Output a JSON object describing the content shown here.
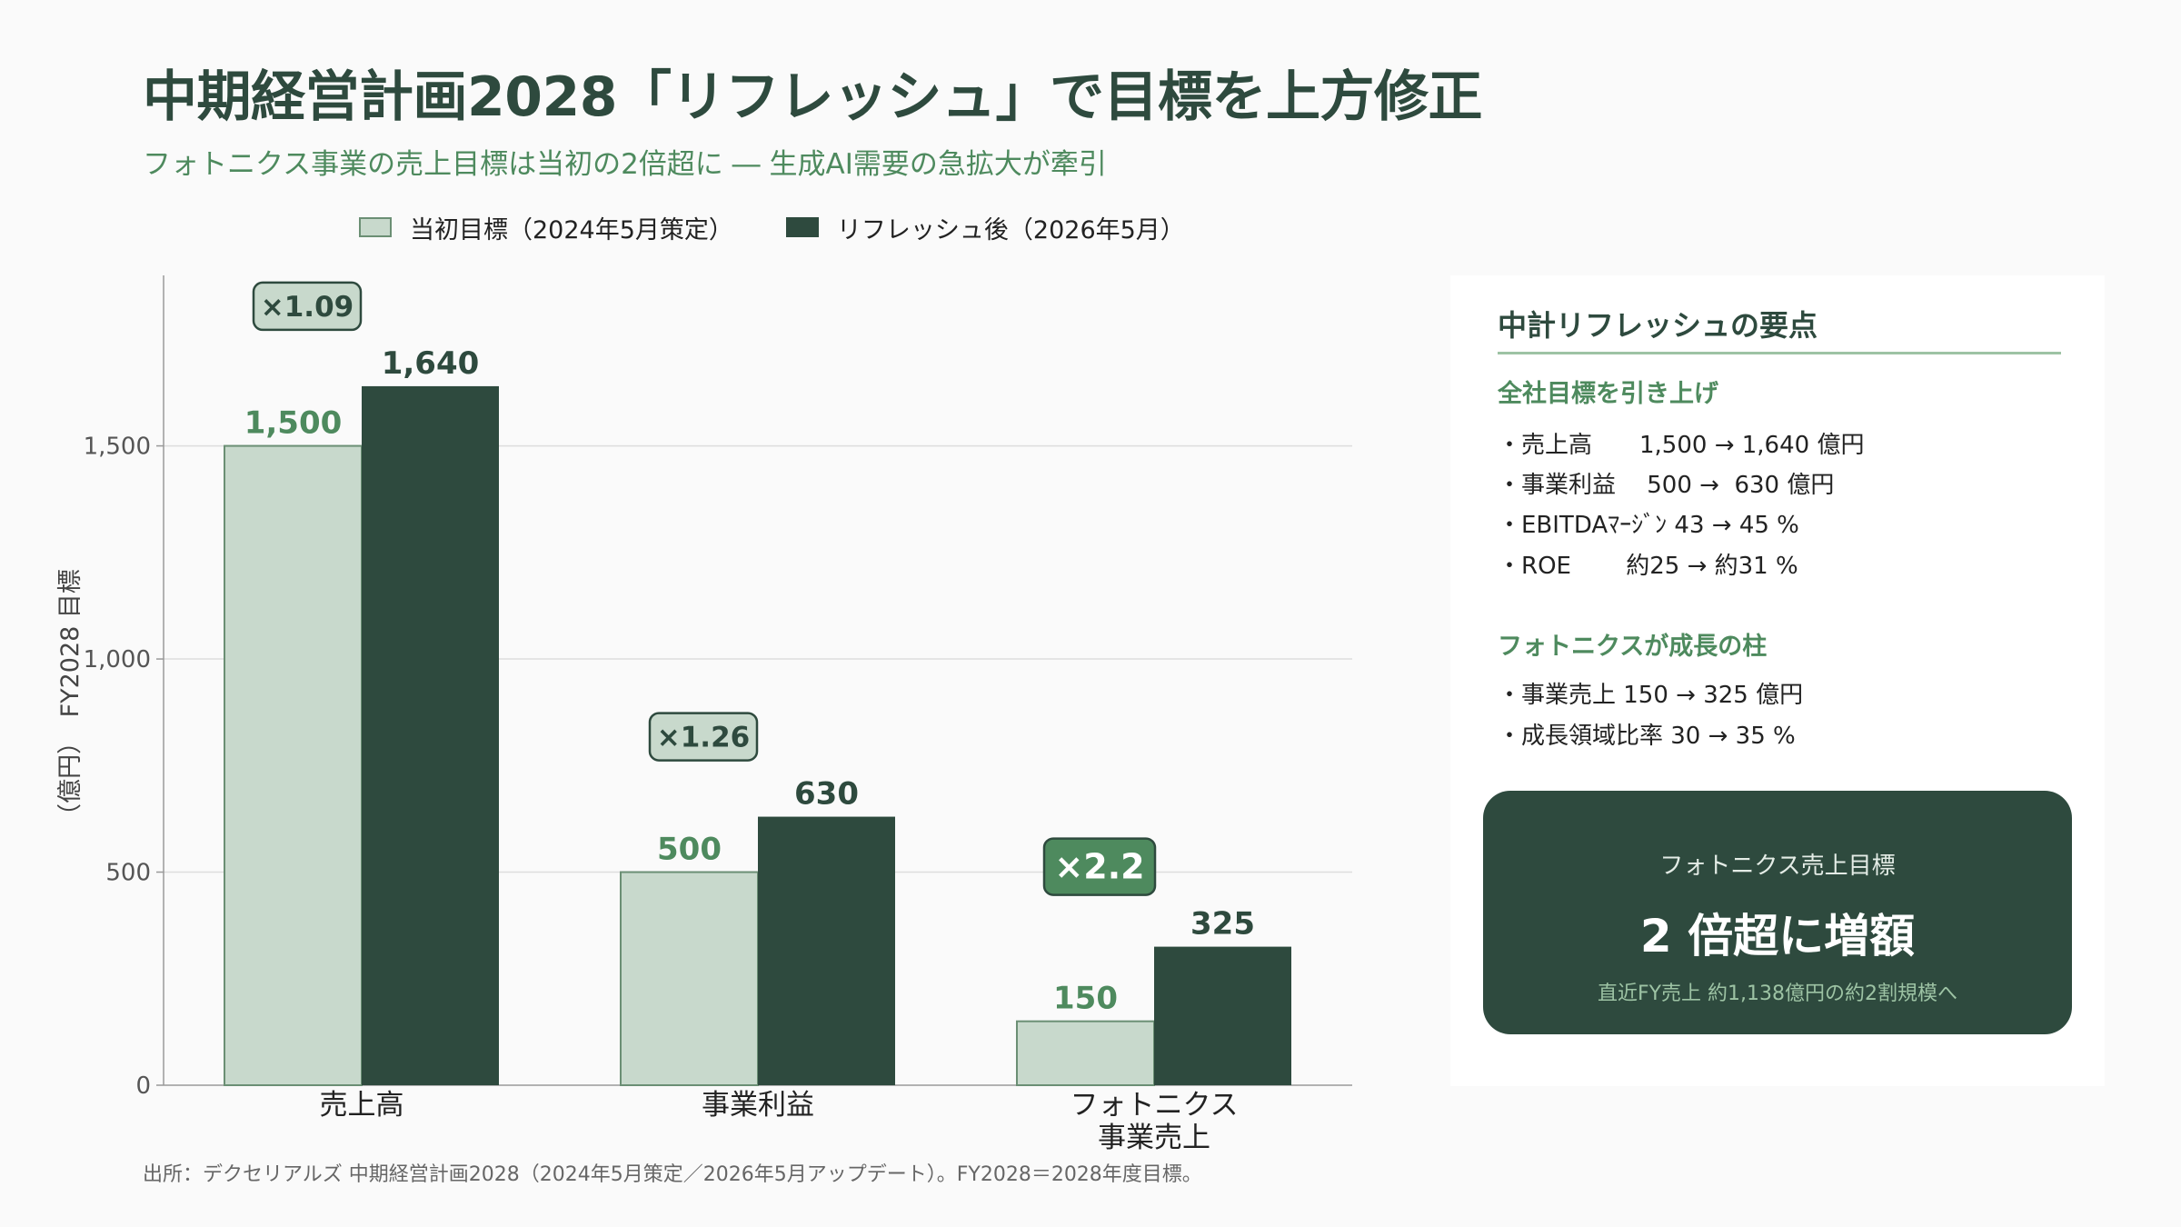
{
  "header": {
    "title": "中期経営計画2028「リフレッシュ」で目標を上方修正",
    "subtitle": "フォトニクス事業の売上目標は当初の2倍超に ― 生成AI需要の急拡大が牽引"
  },
  "chart_data": {
    "type": "bar",
    "categories": [
      "売上高",
      "事業利益",
      "フォトニクス\n事業売上"
    ],
    "series": [
      {
        "name": "当初目標（2024年5月策定）",
        "values": [
          1500,
          500,
          150
        ],
        "color": "#c8d9cc",
        "label_color": "#4e8a5e"
      },
      {
        "name": "リフレッシュ後（2026年5月）",
        "values": [
          1640,
          630,
          325
        ],
        "color": "#2e4a3e",
        "label_color": "#2e4a3e"
      }
    ],
    "ylabel": "（億円）　FY2028 目標",
    "ylim": [
      0,
      1900
    ],
    "yticks": [
      0,
      500,
      1000,
      1500
    ],
    "ytick_labels": [
      "0",
      "500",
      "1,000",
      "1,500"
    ],
    "value_labels": [
      [
        "1,500",
        "500",
        "150"
      ],
      [
        "1,640",
        "630",
        "325"
      ]
    ],
    "multipliers": [
      "×1.09",
      "×1.26",
      "×2.2"
    ],
    "grid": true,
    "legend_position": "top"
  },
  "legend": {
    "item1": "当初目標（2024年5月策定）",
    "item2": "リフレッシュ後（2026年5月）"
  },
  "panel": {
    "title": "中計リフレッシュの要点",
    "section1_title": "全社目標を引き上げ",
    "section1_items": [
      "・売上高　　1,500 → 1,640 億円",
      "・事業利益　 500 →  630 億円",
      "・EBITDAﾏｰｼﾞﾝ 43 → 45 %",
      "・ROE　　 約25 → 約31 %"
    ],
    "section2_title": "フォトニクスが成長の柱",
    "section2_items": [
      "・事業売上 150 → 325 億円",
      "・成長領域比率 30 → 35 %"
    ],
    "callout": {
      "label": "フォトニクス売上目標",
      "headline": "2 倍超に増額",
      "note": "直近FY売上 約1,138億円の約2割規模へ"
    }
  },
  "source": "出所：デクセリアルズ 中期経営計画2028（2024年5月策定／2026年5月アップデート）。FY2028＝2028年度目標。",
  "colors": {
    "primary": "#2e4a3e",
    "accent": "#4e8a5e",
    "light_bar": "#c8d9cc",
    "grid": "#dddddd"
  }
}
